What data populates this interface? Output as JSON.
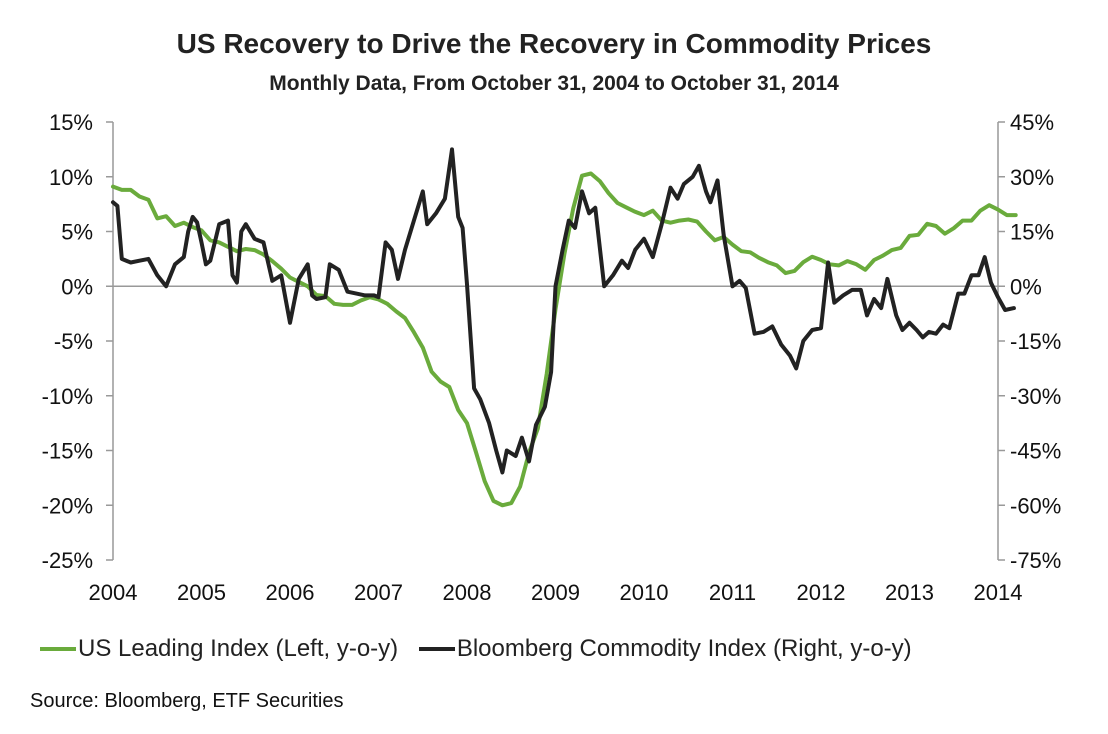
{
  "chart_data": {
    "type": "line",
    "title": "US Recovery to Drive the Recovery in Commodity Prices",
    "subtitle": "Monthly Data, From October 31, 2004 to October 31, 2014",
    "source": "Source: Bloomberg, ETF Securities",
    "x_ticks": [
      "2004",
      "2005",
      "2006",
      "2007",
      "2008",
      "2009",
      "2010",
      "2011",
      "2012",
      "2013",
      "2014"
    ],
    "x_range": [
      2004,
      2014
    ],
    "y_left": {
      "range": [
        -25,
        15
      ],
      "ticks": [
        15,
        10,
        5,
        0,
        -5,
        -10,
        -15,
        -20,
        -25
      ],
      "labels": [
        "15%",
        "10%",
        "5%",
        "0%",
        "-5%",
        "-10%",
        "-15%",
        "-20%",
        "-25%"
      ]
    },
    "y_right": {
      "range": [
        -75,
        45
      ],
      "ticks": [
        45,
        30,
        15,
        0,
        -15,
        -30,
        -45,
        -60,
        -75
      ],
      "labels": [
        "45%",
        "30%",
        "15%",
        "0%",
        "-15%",
        "-30%",
        "-45%",
        "-60%",
        "-75%"
      ]
    },
    "series": [
      {
        "name": "US Leading Index (Left, y-o-y)",
        "axis": "left",
        "color": "#6aab3c",
        "points": [
          [
            2004.0,
            9.1
          ],
          [
            2004.1,
            8.8
          ],
          [
            2004.2,
            8.8
          ],
          [
            2004.3,
            8.2
          ],
          [
            2004.4,
            7.9
          ],
          [
            2004.5,
            6.2
          ],
          [
            2004.6,
            6.4
          ],
          [
            2004.7,
            5.5
          ],
          [
            2004.8,
            5.8
          ],
          [
            2004.9,
            5.4
          ],
          [
            2005.0,
            5.1
          ],
          [
            2005.1,
            4.2
          ],
          [
            2005.2,
            4.0
          ],
          [
            2005.3,
            3.6
          ],
          [
            2005.4,
            3.2
          ],
          [
            2005.5,
            3.4
          ],
          [
            2005.6,
            3.3
          ],
          [
            2005.7,
            2.9
          ],
          [
            2005.8,
            2.3
          ],
          [
            2005.9,
            1.6
          ],
          [
            2006.0,
            0.8
          ],
          [
            2006.1,
            0.4
          ],
          [
            2006.2,
            0.0
          ],
          [
            2006.3,
            -0.8
          ],
          [
            2006.4,
            -0.9
          ],
          [
            2006.5,
            -1.6
          ],
          [
            2006.6,
            -1.7
          ],
          [
            2006.7,
            -1.7
          ],
          [
            2006.8,
            -1.3
          ],
          [
            2006.9,
            -1.0
          ],
          [
            2007.0,
            -1.2
          ],
          [
            2007.1,
            -1.6
          ],
          [
            2007.2,
            -2.3
          ],
          [
            2007.3,
            -2.9
          ],
          [
            2007.4,
            -4.2
          ],
          [
            2007.5,
            -5.6
          ],
          [
            2007.6,
            -7.8
          ],
          [
            2007.7,
            -8.7
          ],
          [
            2007.8,
            -9.2
          ],
          [
            2007.9,
            -11.3
          ],
          [
            2008.0,
            -12.5
          ],
          [
            2008.1,
            -15.1
          ],
          [
            2008.2,
            -17.8
          ],
          [
            2008.3,
            -19.6
          ],
          [
            2008.4,
            -20.0
          ],
          [
            2008.5,
            -19.8
          ],
          [
            2008.6,
            -18.3
          ],
          [
            2008.7,
            -15.2
          ],
          [
            2008.8,
            -13.0
          ],
          [
            2008.9,
            -8.0
          ],
          [
            2009.0,
            -2.1
          ],
          [
            2009.1,
            2.9
          ],
          [
            2009.2,
            7.1
          ],
          [
            2009.3,
            10.1
          ],
          [
            2009.4,
            10.3
          ],
          [
            2009.5,
            9.6
          ],
          [
            2009.6,
            8.5
          ],
          [
            2009.7,
            7.6
          ],
          [
            2009.8,
            7.2
          ],
          [
            2009.9,
            6.8
          ],
          [
            2010.0,
            6.5
          ],
          [
            2010.1,
            6.9
          ],
          [
            2010.2,
            6.0
          ],
          [
            2010.3,
            5.8
          ],
          [
            2010.4,
            6.0
          ],
          [
            2010.5,
            6.1
          ],
          [
            2010.6,
            5.9
          ],
          [
            2010.7,
            5.0
          ],
          [
            2010.8,
            4.2
          ],
          [
            2010.9,
            4.5
          ],
          [
            2011.0,
            3.8
          ],
          [
            2011.1,
            3.2
          ],
          [
            2011.2,
            3.1
          ],
          [
            2011.3,
            2.6
          ],
          [
            2011.4,
            2.2
          ],
          [
            2011.5,
            1.9
          ],
          [
            2011.6,
            1.2
          ],
          [
            2011.7,
            1.4
          ],
          [
            2011.8,
            2.2
          ],
          [
            2011.9,
            2.7
          ],
          [
            2012.0,
            2.4
          ],
          [
            2012.1,
            2.0
          ],
          [
            2012.2,
            1.9
          ],
          [
            2012.3,
            2.3
          ],
          [
            2012.4,
            2.0
          ],
          [
            2012.5,
            1.5
          ],
          [
            2012.6,
            2.4
          ],
          [
            2012.7,
            2.8
          ],
          [
            2012.8,
            3.3
          ],
          [
            2012.9,
            3.5
          ],
          [
            2013.0,
            4.6
          ],
          [
            2013.1,
            4.7
          ],
          [
            2013.2,
            5.7
          ],
          [
            2013.3,
            5.5
          ],
          [
            2013.4,
            4.8
          ],
          [
            2013.5,
            5.3
          ],
          [
            2013.6,
            6.0
          ],
          [
            2013.7,
            6.0
          ],
          [
            2013.8,
            6.9
          ],
          [
            2013.9,
            7.4
          ],
          [
            2014.0,
            7.0
          ],
          [
            2014.1,
            6.5
          ],
          [
            2014.2,
            6.5
          ]
        ]
      },
      {
        "name": "Bloomberg Commodity Index (Right, y-o-y)",
        "axis": "right",
        "color": "#222222",
        "points": [
          [
            2004.0,
            23.0
          ],
          [
            2004.05,
            22.0
          ],
          [
            2004.1,
            7.5
          ],
          [
            2004.2,
            6.5
          ],
          [
            2004.3,
            7.0
          ],
          [
            2004.4,
            7.5
          ],
          [
            2004.5,
            3.0
          ],
          [
            2004.6,
            0.0
          ],
          [
            2004.7,
            6.0
          ],
          [
            2004.8,
            8.0
          ],
          [
            2004.85,
            15.0
          ],
          [
            2004.9,
            19.0
          ],
          [
            2004.95,
            17.5
          ],
          [
            2005.0,
            12.0
          ],
          [
            2005.05,
            6.0
          ],
          [
            2005.1,
            7.0
          ],
          [
            2005.15,
            12.0
          ],
          [
            2005.2,
            17.0
          ],
          [
            2005.3,
            18.0
          ],
          [
            2005.35,
            3.0
          ],
          [
            2005.4,
            1.0
          ],
          [
            2005.45,
            15.0
          ],
          [
            2005.5,
            17.0
          ],
          [
            2005.6,
            13.0
          ],
          [
            2005.7,
            12.0
          ],
          [
            2005.8,
            1.5
          ],
          [
            2005.9,
            3.0
          ],
          [
            2006.0,
            -10.0
          ],
          [
            2006.1,
            2.0
          ],
          [
            2006.2,
            6.0
          ],
          [
            2006.25,
            -2.5
          ],
          [
            2006.3,
            -3.5
          ],
          [
            2006.4,
            -3.0
          ],
          [
            2006.45,
            6.0
          ],
          [
            2006.55,
            4.5
          ],
          [
            2006.65,
            -1.5
          ],
          [
            2006.75,
            -2.0
          ],
          [
            2006.85,
            -2.5
          ],
          [
            2006.95,
            -2.5
          ],
          [
            2007.0,
            -3.0
          ],
          [
            2007.08,
            12.0
          ],
          [
            2007.15,
            10.0
          ],
          [
            2007.22,
            2.0
          ],
          [
            2007.3,
            10.0
          ],
          [
            2007.4,
            18.0
          ],
          [
            2007.5,
            26.0
          ],
          [
            2007.55,
            17.0
          ],
          [
            2007.65,
            20.0
          ],
          [
            2007.75,
            24.0
          ],
          [
            2007.83,
            37.5
          ],
          [
            2007.9,
            19.0
          ],
          [
            2007.95,
            16.0
          ],
          [
            2008.0,
            0.5
          ],
          [
            2008.08,
            -28.0
          ],
          [
            2008.15,
            -31.0
          ],
          [
            2008.25,
            -37.5
          ],
          [
            2008.33,
            -45.0
          ],
          [
            2008.4,
            -51.0
          ],
          [
            2008.45,
            -45.0
          ],
          [
            2008.55,
            -46.5
          ],
          [
            2008.62,
            -41.5
          ],
          [
            2008.7,
            -48.0
          ],
          [
            2008.78,
            -38.0
          ],
          [
            2008.88,
            -33.0
          ],
          [
            2008.95,
            -23.5
          ],
          [
            2009.0,
            0.0
          ],
          [
            2009.08,
            10.0
          ],
          [
            2009.15,
            18.0
          ],
          [
            2009.22,
            16.0
          ],
          [
            2009.3,
            26.0
          ],
          [
            2009.38,
            20.0
          ],
          [
            2009.45,
            21.5
          ],
          [
            2009.55,
            0.0
          ],
          [
            2009.65,
            3.0
          ],
          [
            2009.75,
            7.0
          ],
          [
            2009.82,
            5.0
          ],
          [
            2009.9,
            10.0
          ],
          [
            2010.0,
            13.0
          ],
          [
            2010.1,
            8.0
          ],
          [
            2010.2,
            17.0
          ],
          [
            2010.3,
            27.0
          ],
          [
            2010.38,
            24.0
          ],
          [
            2010.45,
            28.0
          ],
          [
            2010.55,
            30.0
          ],
          [
            2010.62,
            33.0
          ],
          [
            2010.7,
            26.0
          ],
          [
            2010.75,
            23.0
          ],
          [
            2010.83,
            29.0
          ],
          [
            2010.9,
            14.0
          ],
          [
            2011.0,
            0.0
          ],
          [
            2011.08,
            1.5
          ],
          [
            2011.15,
            -0.5
          ],
          [
            2011.25,
            -13.0
          ],
          [
            2011.35,
            -12.5
          ],
          [
            2011.45,
            -11.0
          ],
          [
            2011.55,
            -16.0
          ],
          [
            2011.65,
            -19.0
          ],
          [
            2011.72,
            -22.5
          ],
          [
            2011.8,
            -15.0
          ],
          [
            2011.9,
            -12.0
          ],
          [
            2012.0,
            -11.5
          ],
          [
            2012.08,
            6.5
          ],
          [
            2012.15,
            -4.5
          ],
          [
            2012.25,
            -2.5
          ],
          [
            2012.35,
            -1.0
          ],
          [
            2012.45,
            -1.0
          ],
          [
            2012.52,
            -8.0
          ],
          [
            2012.6,
            -3.5
          ],
          [
            2012.68,
            -6.0
          ],
          [
            2012.75,
            2.0
          ],
          [
            2012.85,
            -8.0
          ],
          [
            2012.92,
            -12.0
          ],
          [
            2013.0,
            -10.0
          ],
          [
            2013.08,
            -12.0
          ],
          [
            2013.15,
            -14.0
          ],
          [
            2013.22,
            -12.5
          ],
          [
            2013.3,
            -13.0
          ],
          [
            2013.38,
            -10.5
          ],
          [
            2013.45,
            -11.5
          ],
          [
            2013.55,
            -2.0
          ],
          [
            2013.62,
            -2.0
          ],
          [
            2013.7,
            3.0
          ],
          [
            2013.78,
            3.0
          ],
          [
            2013.85,
            8.0
          ],
          [
            2013.92,
            1.0
          ],
          [
            2014.0,
            -3.0
          ],
          [
            2014.08,
            -6.5
          ],
          [
            2014.18,
            -6.0
          ]
        ]
      }
    ],
    "grid": false,
    "legend_position": "bottom"
  }
}
